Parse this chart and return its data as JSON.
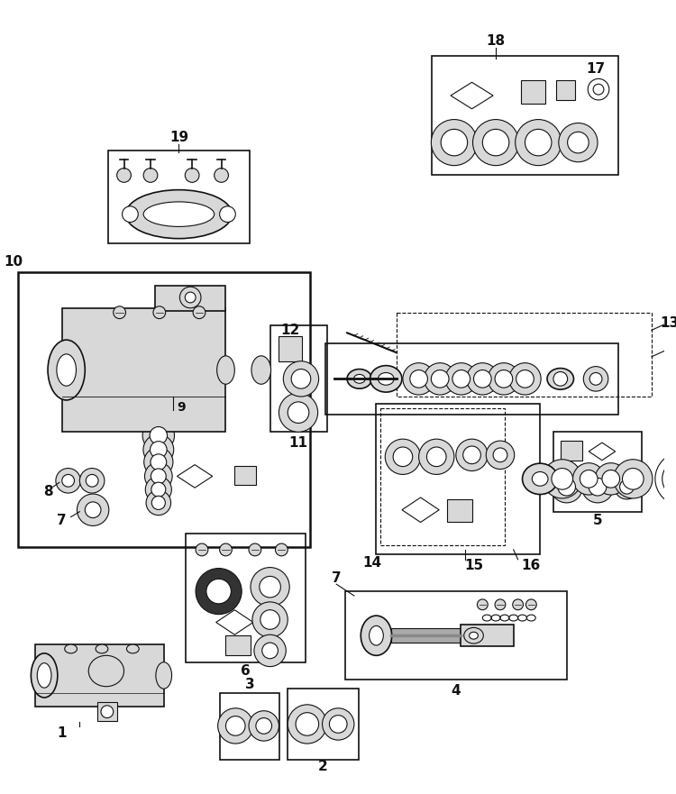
{
  "bg_color": "#ffffff",
  "line_color": "#111111",
  "fill_color": "#d8d8d8",
  "fig_width": 7.5,
  "fig_height": 8.81,
  "dpi": 100
}
